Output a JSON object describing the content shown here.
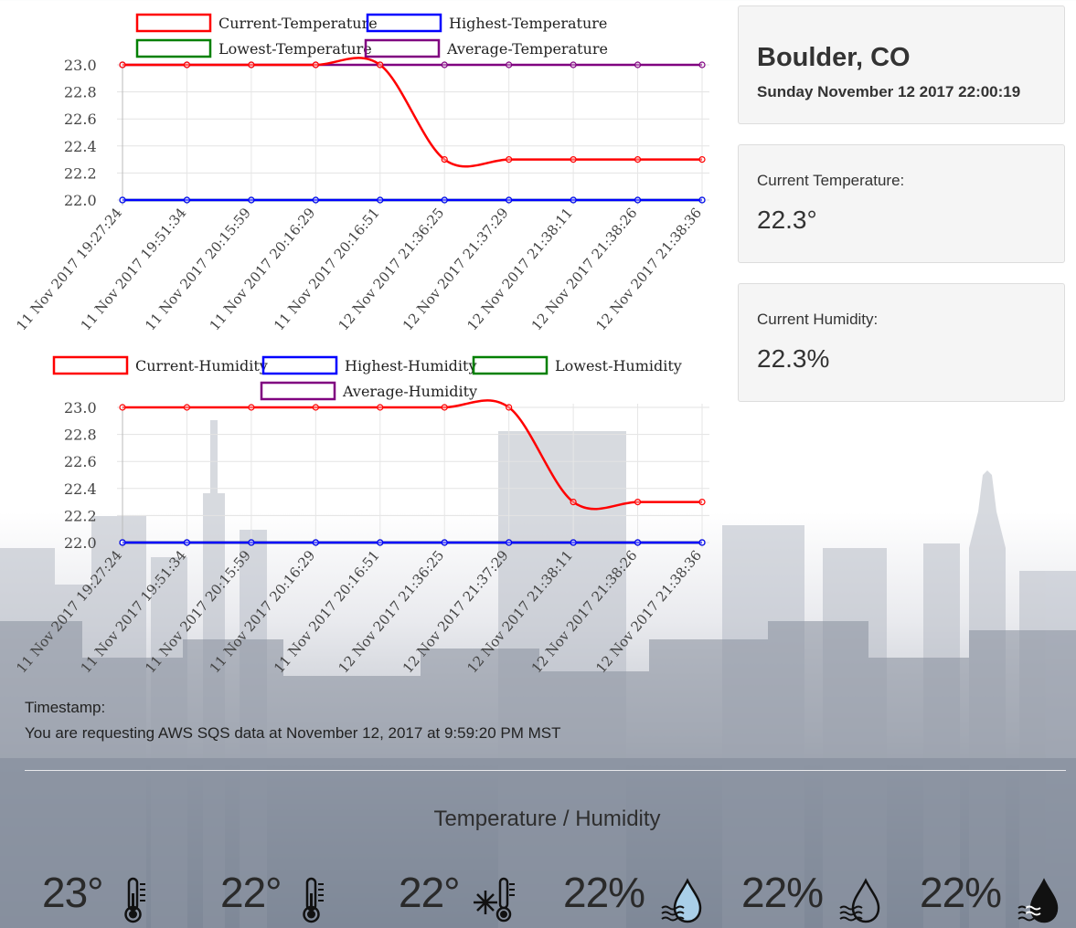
{
  "location": {
    "city": "Boulder, CO",
    "datetime": "Sunday November 12 2017 22:00:19"
  },
  "current_temperature": {
    "label": "Current Temperature:",
    "value": "22.3°"
  },
  "current_humidity": {
    "label": "Current Humidity:",
    "value": "22.3%"
  },
  "timestamp": {
    "label": "Timestamp:",
    "text": "You are requesting AWS SQS data at November 12, 2017 at 9:59:20 PM MST"
  },
  "section_title": "Temperature / Humidity",
  "stats": [
    {
      "value": "23°",
      "icon": "thermometer-icon"
    },
    {
      "value": "22°",
      "icon": "thermometer-icon"
    },
    {
      "value": "22°",
      "icon": "thermometer-snowflake-icon"
    },
    {
      "value": "22%",
      "icon": "water-drop-light-icon"
    },
    {
      "value": "22%",
      "icon": "water-drop-outline-icon"
    },
    {
      "value": "22%",
      "icon": "water-drop-filled-icon"
    }
  ],
  "colors": {
    "current": "#ff0000",
    "highest": "#0000ff",
    "lowest": "#008000",
    "average": "#800080"
  },
  "chart_data": [
    {
      "type": "line",
      "title": "",
      "xlabel": "",
      "ylabel": "",
      "ylim": [
        22.0,
        23.0
      ],
      "y_ticks": [
        "23.0",
        "22.8",
        "22.6",
        "22.4",
        "22.2",
        "22.0"
      ],
      "categories": [
        "11 Nov 2017 19:27:24",
        "11 Nov 2017 19:51:34",
        "11 Nov 2017 20:15:59",
        "11 Nov 2017 20:16:29",
        "11 Nov 2017 20:16:51",
        "12 Nov 2017 21:36:25",
        "12 Nov 2017 21:37:29",
        "12 Nov 2017 21:38:11",
        "12 Nov 2017 21:38:26",
        "12 Nov 2017 21:38:36"
      ],
      "legend_rows": [
        [
          0,
          1
        ],
        [
          2,
          3
        ]
      ],
      "series": [
        {
          "name": "Current-Temperature",
          "color": "#ff0000",
          "values": [
            23,
            23,
            23,
            23,
            23,
            22.3,
            22.3,
            22.3,
            22.3,
            22.3
          ]
        },
        {
          "name": "Highest-Temperature",
          "color": "#0000ff",
          "values": [
            22,
            22,
            22,
            22,
            22,
            22,
            22,
            22,
            22,
            22
          ]
        },
        {
          "name": "Lowest-Temperature",
          "color": "#008000",
          "values": [
            22,
            22,
            22,
            22,
            22,
            22,
            22,
            22,
            22,
            22
          ]
        },
        {
          "name": "Average-Temperature",
          "color": "#800080",
          "values": [
            23,
            23,
            23,
            23,
            23,
            23,
            23,
            23,
            23,
            23
          ]
        }
      ]
    },
    {
      "type": "line",
      "title": "",
      "xlabel": "",
      "ylabel": "",
      "ylim": [
        22.0,
        23.0
      ],
      "y_ticks": [
        "23.0",
        "22.8",
        "22.6",
        "22.4",
        "22.2",
        "22.0"
      ],
      "categories": [
        "11 Nov 2017 19:27:24",
        "11 Nov 2017 19:51:34",
        "11 Nov 2017 20:15:59",
        "11 Nov 2017 20:16:29",
        "11 Nov 2017 20:16:51",
        "12 Nov 2017 21:36:25",
        "12 Nov 2017 21:37:29",
        "12 Nov 2017 21:38:11",
        "12 Nov 2017 21:38:26",
        "12 Nov 2017 21:38:36"
      ],
      "legend_rows": [
        [
          0,
          1,
          2
        ],
        [
          3
        ]
      ],
      "series": [
        {
          "name": "Current-Humidity",
          "color": "#ff0000",
          "values": [
            23,
            23,
            23,
            23,
            23,
            23,
            23,
            22.3,
            22.3,
            22.3
          ]
        },
        {
          "name": "Highest-Humidity",
          "color": "#0000ff",
          "values": [
            22,
            22,
            22,
            22,
            22,
            22,
            22,
            22,
            22,
            22
          ]
        },
        {
          "name": "Lowest-Humidity",
          "color": "#008000",
          "values": [
            22,
            22,
            22,
            22,
            22,
            22,
            22,
            22,
            22,
            22
          ]
        },
        {
          "name": "Average-Humidity",
          "color": "#800080",
          "values": [
            22,
            22,
            22,
            22,
            22,
            22,
            22,
            22,
            22,
            22
          ]
        }
      ]
    }
  ]
}
